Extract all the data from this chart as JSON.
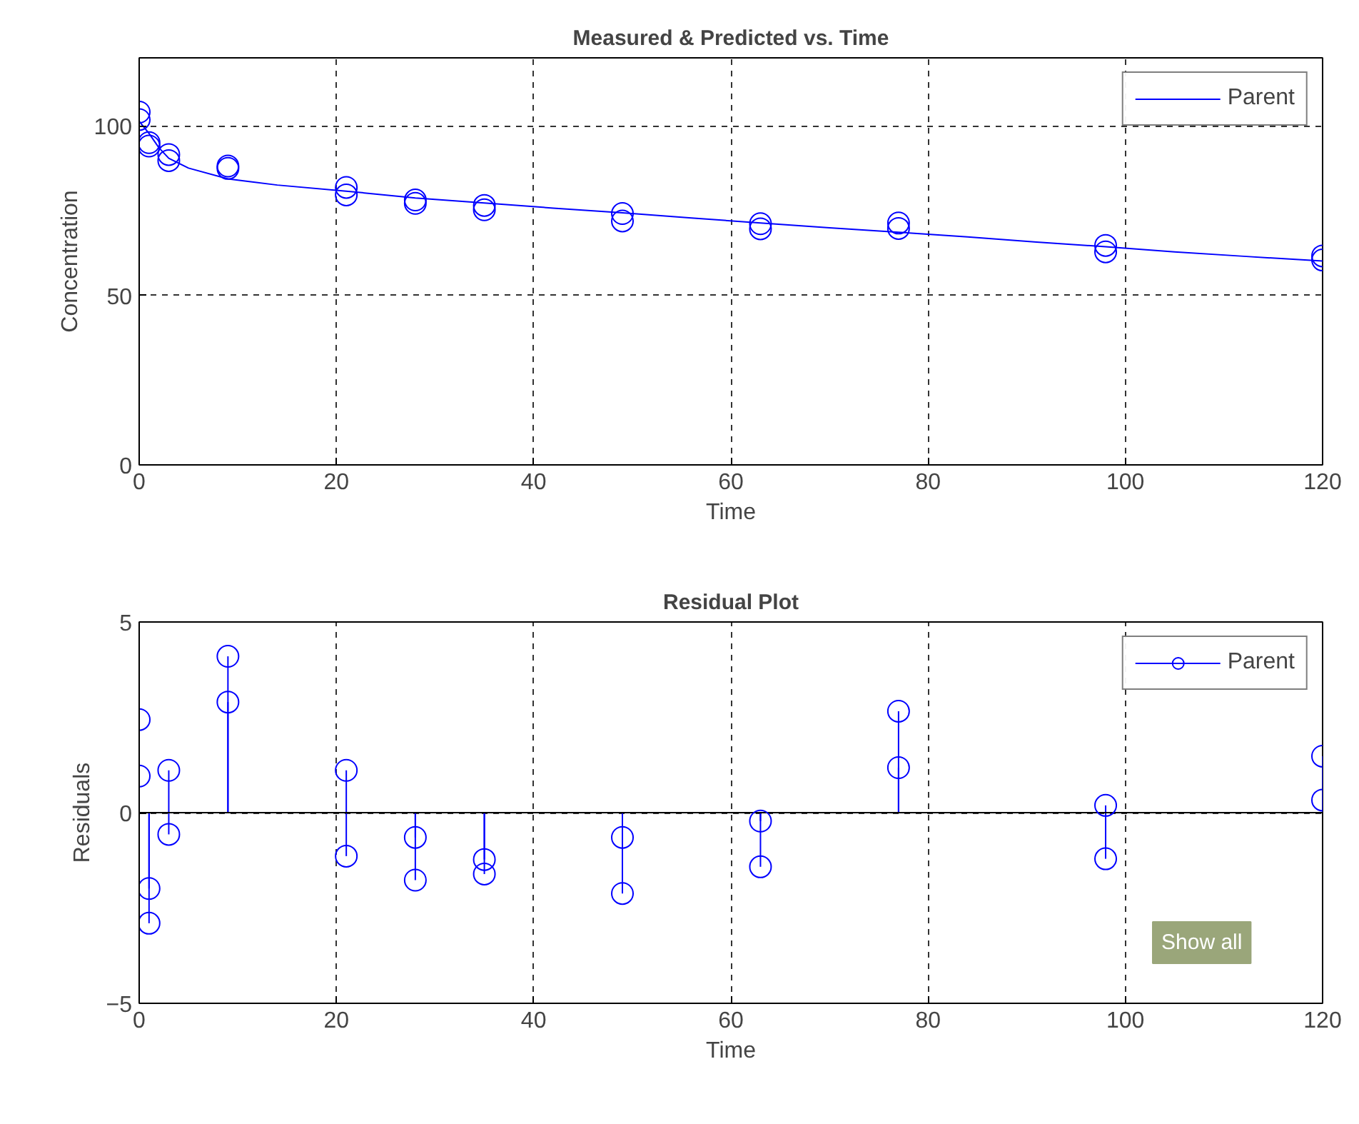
{
  "chart_data": [
    {
      "type": "scatter",
      "title": "Measured & Predicted vs. Time",
      "xlabel": "Time",
      "ylabel": "Concentration",
      "xlim": [
        0,
        120
      ],
      "xticks": [
        0,
        20,
        40,
        60,
        80,
        100,
        120
      ],
      "ylim": [
        0,
        120
      ],
      "yticks": [
        0,
        50,
        100
      ],
      "grid": true,
      "legend": "top right",
      "series": [
        {
          "name": "Parent",
          "type": "line",
          "color": "#0000ff",
          "x": [
            0,
            1,
            2,
            3,
            5,
            9,
            14,
            21,
            28,
            35,
            42,
            49,
            56,
            63,
            70,
            77,
            84,
            91,
            98,
            105,
            112,
            120
          ],
          "values": [
            101.3,
            97.7,
            93.5,
            90.4,
            87.5,
            84.3,
            82.5,
            80.7,
            78.7,
            77.2,
            75.7,
            74.3,
            72.8,
            71.3,
            69.9,
            68.6,
            67.2,
            65.7,
            64.3,
            62.8,
            61.5,
            60.1
          ]
        },
        {
          "type": "scatter",
          "marker": "circle",
          "color": "#0000ff",
          "x": [
            0,
            0,
            1,
            1,
            3,
            3,
            9,
            9,
            21,
            21,
            28,
            28,
            35,
            35,
            49,
            49,
            63,
            63,
            77,
            77,
            98,
            98,
            120,
            120
          ],
          "values": [
            104,
            101.8,
            95,
            94,
            91.5,
            89.7,
            88.1,
            87.4,
            81.8,
            79.6,
            78.1,
            77.1,
            76.5,
            75.2,
            74.1,
            71.9,
            71.1,
            69.6,
            71.3,
            69.7,
            64.7,
            62.8,
            61.6,
            60.4
          ]
        }
      ]
    },
    {
      "type": "lollipop",
      "title": "Residual Plot",
      "xlabel": "Time",
      "ylabel": "Residuals",
      "xlim": [
        0,
        120
      ],
      "xticks": [
        0,
        20,
        40,
        60,
        80,
        100,
        120
      ],
      "ylim": [
        -5,
        5
      ],
      "yticks": [
        -5,
        0,
        5
      ],
      "grid": true,
      "legend": "top right",
      "marker": "circle",
      "annotations": [
        "Show all"
      ],
      "series": [
        {
          "name": "Parent",
          "color": "#0000ff",
          "x": [
            0,
            0,
            1,
            1,
            3,
            3,
            9,
            9,
            21,
            21,
            28,
            28,
            35,
            35,
            49,
            49,
            63,
            63,
            77,
            77,
            98,
            98,
            120,
            120
          ],
          "values": [
            2.44,
            0.96,
            -1.99,
            -2.9,
            1.11,
            -0.57,
            4.1,
            2.9,
            1.11,
            -1.14,
            -0.65,
            -1.77,
            -1.23,
            -1.61,
            -0.65,
            -2.12,
            -0.22,
            -1.42,
            2.66,
            1.18,
            0.19,
            -1.21,
            1.48,
            0.33
          ]
        }
      ]
    }
  ]
}
